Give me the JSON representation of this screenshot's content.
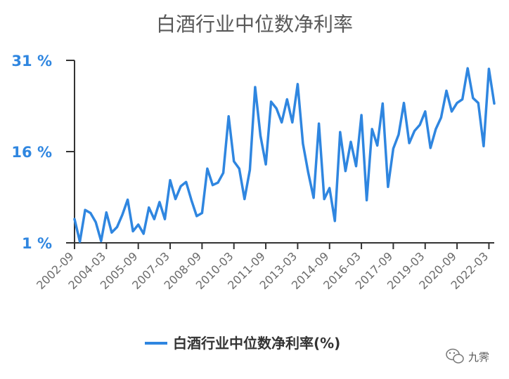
{
  "chart_data": {
    "type": "line",
    "title": "白酒行业中位数净利率",
    "xlabel": "",
    "ylabel": "",
    "ylim": [
      1,
      31
    ],
    "y_ticks": [
      "1 %",
      "16 %",
      "31 %"
    ],
    "x_ticks": [
      "2002-09",
      "2004-03",
      "2005-09",
      "2007-03",
      "2008-09",
      "2010-03",
      "2011-09",
      "2013-03",
      "2014-09",
      "2016-03",
      "2017-09",
      "2019-03",
      "2020-09",
      "2022-03"
    ],
    "x": [
      "2002-09",
      "2002-12",
      "2003-03",
      "2003-06",
      "2003-09",
      "2003-12",
      "2004-03",
      "2004-06",
      "2004-09",
      "2004-12",
      "2005-03",
      "2005-06",
      "2005-09",
      "2005-12",
      "2006-03",
      "2006-06",
      "2006-09",
      "2006-12",
      "2007-03",
      "2007-06",
      "2007-09",
      "2007-12",
      "2008-03",
      "2008-06",
      "2008-09",
      "2008-12",
      "2009-03",
      "2009-06",
      "2009-09",
      "2009-12",
      "2010-03",
      "2010-06",
      "2010-09",
      "2010-12",
      "2011-03",
      "2011-06",
      "2011-09",
      "2011-12",
      "2012-03",
      "2012-06",
      "2012-09",
      "2012-12",
      "2013-03",
      "2013-06",
      "2013-09",
      "2013-12",
      "2014-03",
      "2014-06",
      "2014-09",
      "2014-12",
      "2015-03",
      "2015-06",
      "2015-09",
      "2015-12",
      "2016-03",
      "2016-06",
      "2016-09",
      "2016-12",
      "2017-03",
      "2017-06",
      "2017-09",
      "2017-12",
      "2018-03",
      "2018-06",
      "2018-09",
      "2018-12",
      "2019-03",
      "2019-06",
      "2019-09",
      "2019-12",
      "2020-03",
      "2020-06",
      "2020-09",
      "2020-12",
      "2021-03",
      "2021-06",
      "2021-09",
      "2021-12",
      "2022-03",
      "2022-06"
    ],
    "series": [
      {
        "name": "白酒行业中位数净利率(%)",
        "color": "#2f86e0",
        "values": [
          4.9,
          1.2,
          6.4,
          5.9,
          4.4,
          1.3,
          6.0,
          2.7,
          3.6,
          5.6,
          8.1,
          2.9,
          4.0,
          2.5,
          6.8,
          4.9,
          7.7,
          4.9,
          11.3,
          8.2,
          10.3,
          11.0,
          8.0,
          5.4,
          5.9,
          13.2,
          10.5,
          10.9,
          12.5,
          21.8,
          14.4,
          13.2,
          8.2,
          13.0,
          26.6,
          18.6,
          13.9,
          24.2,
          23.1,
          20.8,
          24.6,
          20.8,
          27.1,
          17.3,
          12.5,
          8.4,
          20.6,
          8.2,
          10.0,
          4.6,
          19.2,
          12.8,
          17.6,
          13.6,
          22.0,
          8.0,
          19.7,
          17.0,
          23.9,
          10.2,
          16.5,
          18.8,
          24.0,
          17.4,
          19.4,
          20.4,
          22.6,
          16.6,
          19.7,
          21.6,
          26.0,
          22.6,
          24.0,
          24.6,
          29.7,
          24.8,
          24.0,
          16.9,
          29.6,
          23.9
        ]
      }
    ],
    "grid": false,
    "legend_position": "bottom-center"
  },
  "colors": {
    "line": "#2f86e0",
    "ytick": "#2f86e0",
    "axis": "#333333"
  },
  "watermark": {
    "icon": "wechat-icon",
    "text": "九霁"
  }
}
